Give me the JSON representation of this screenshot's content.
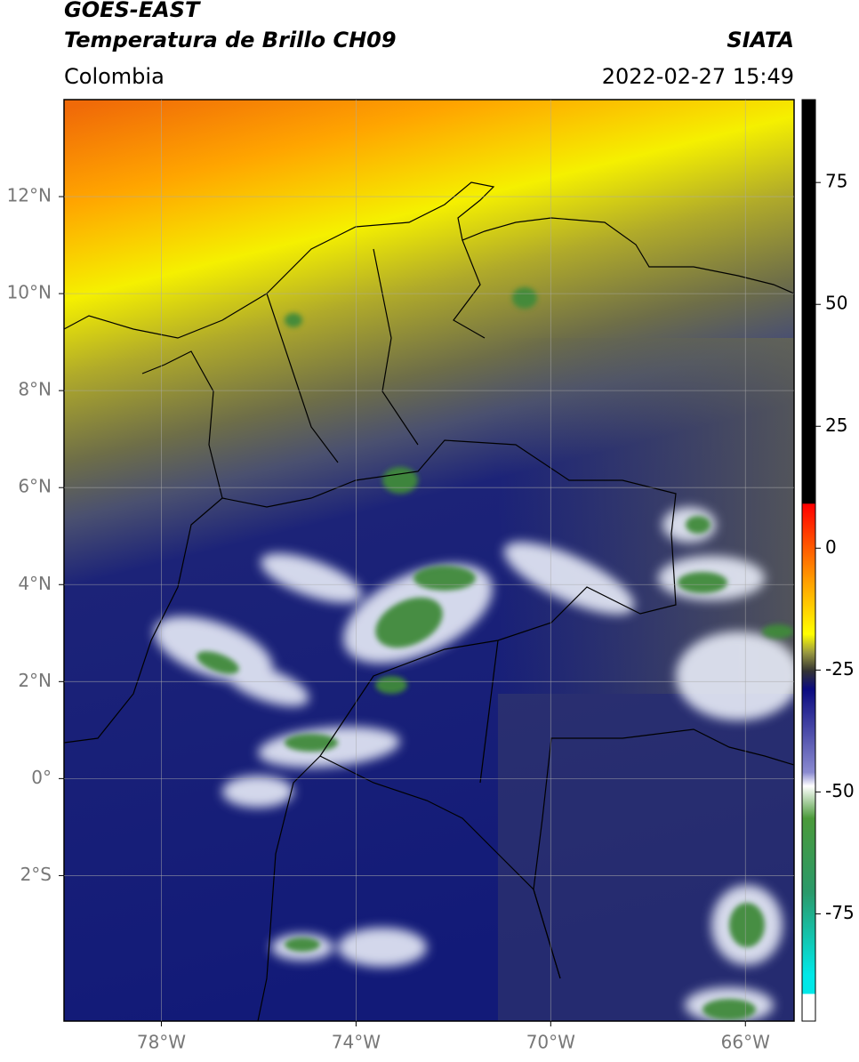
{
  "header": {
    "title": "GOES-EAST",
    "subtitle": "Temperatura de Brillo CH09",
    "source": "SIATA",
    "region": "Colombia",
    "datetime": "2022-02-27 15:49"
  },
  "map": {
    "lonlim": [
      -80,
      -65
    ],
    "latlim": [
      -5,
      14
    ],
    "xticks": [
      {
        "value": -78,
        "label": "78°W"
      },
      {
        "value": -74,
        "label": "74°W"
      },
      {
        "value": -70,
        "label": "70°W"
      },
      {
        "value": -66,
        "label": "66°W"
      }
    ],
    "yticks": [
      {
        "value": 12,
        "label": "12°N"
      },
      {
        "value": 10,
        "label": "10°N"
      },
      {
        "value": 8,
        "label": "8°N"
      },
      {
        "value": 6,
        "label": "6°N"
      },
      {
        "value": 4,
        "label": "4°N"
      },
      {
        "value": 2,
        "label": "2°N"
      },
      {
        "value": 0,
        "label": "0°"
      },
      {
        "value": -2,
        "label": "2°S"
      }
    ],
    "grid": true
  },
  "colorbar": {
    "lim": [
      -97,
      92
    ],
    "ticks": [
      75,
      50,
      25,
      0,
      -25,
      -50,
      -75
    ]
  }
}
